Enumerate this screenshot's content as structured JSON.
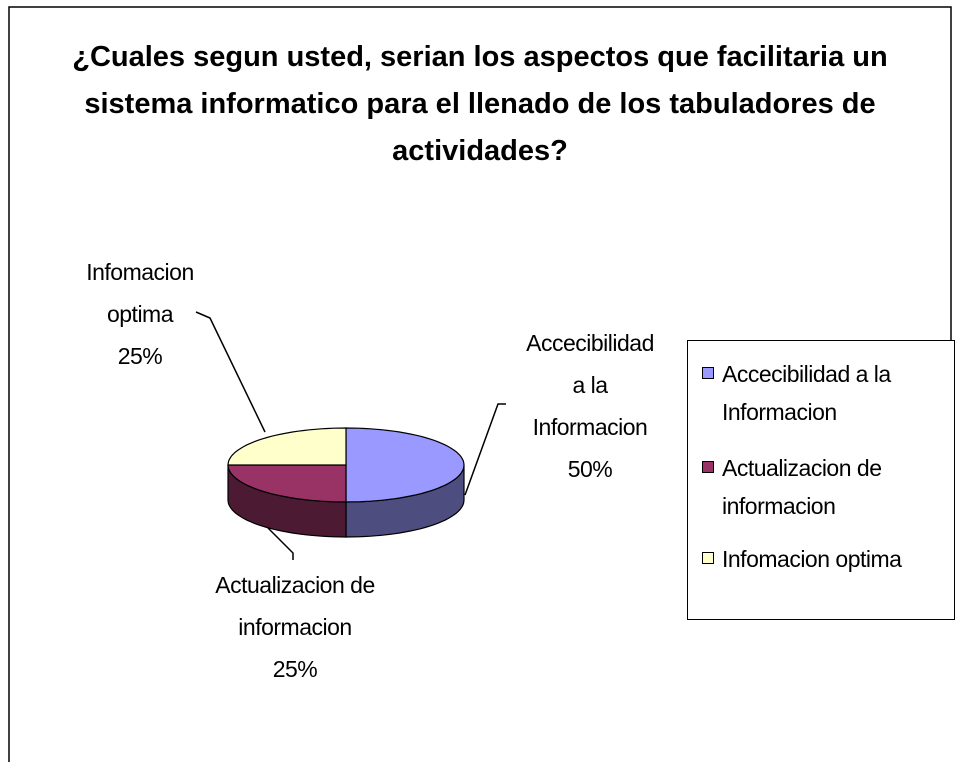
{
  "chart_data": {
    "type": "pie",
    "title": "¿Cuales segun usted, serian los aspectos que facilitaria un sistema informatico para el llenado de los tabuladores de actividades?",
    "categories": [
      "Accecibilidad a la Informacion",
      "Actualizacion de informacion",
      "Infomacion optima"
    ],
    "values": [
      50,
      25,
      25
    ],
    "value_labels": [
      "50%",
      "25%",
      "25%"
    ],
    "colors": [
      "#9999ff",
      "#993366",
      "#ffffcc"
    ],
    "legend": "right"
  }
}
